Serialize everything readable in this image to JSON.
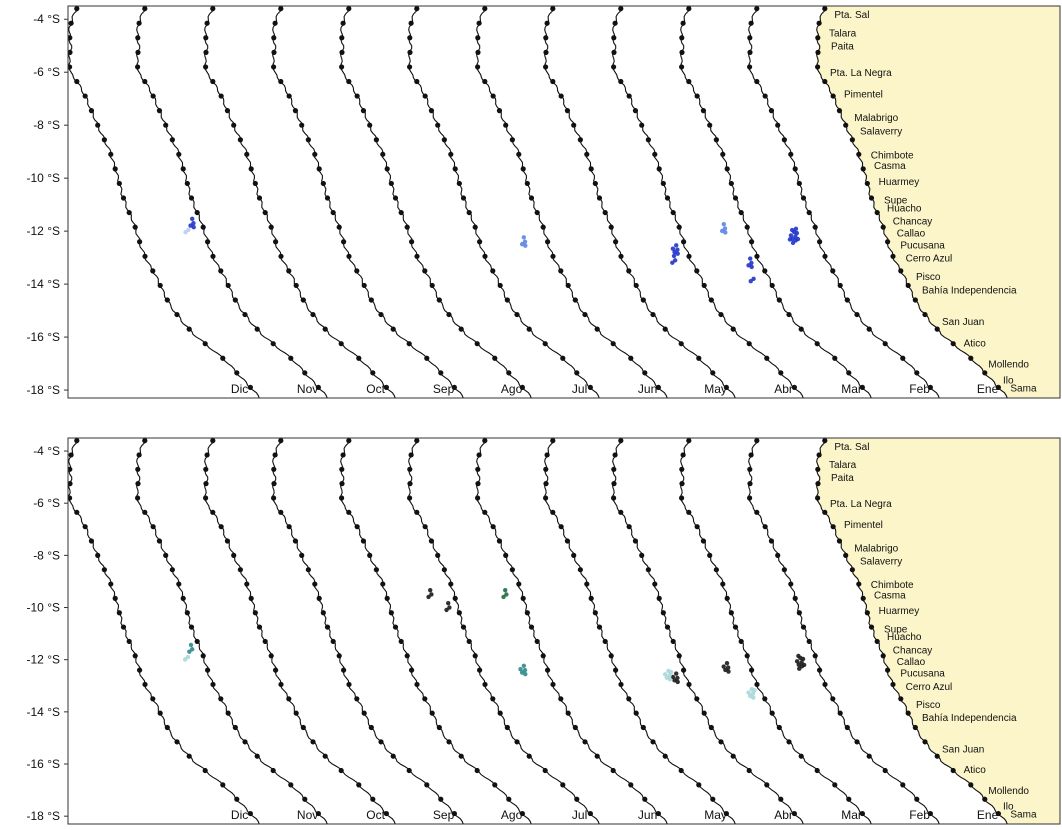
{
  "colors": {
    "land": "#fbf5c9",
    "coast": "#111111",
    "frame": "#333333",
    "top_catch": [
      "#1f34c9",
      "#5d84e6",
      "#b9ccf3"
    ],
    "bottom_catch": [
      "#1a1a1a",
      "#2f8a8a",
      "#a9d7d9",
      "#1f6b44"
    ]
  },
  "chart_data": {
    "type": "map",
    "lat_ticks": [
      "-4 °S",
      "-6 °S",
      "-8 °S",
      "-10 °S",
      "-12 °S",
      "-14 °S",
      "-16 °S",
      "-18 °S"
    ],
    "lat_values": [
      -4,
      -6,
      -8,
      -10,
      -12,
      -14,
      -16,
      -18
    ],
    "ylim": [
      -18.3,
      -3.5
    ],
    "months": [
      "Dic",
      "Nov",
      "Oct",
      "Sep",
      "Ago",
      "Jul",
      "Jun",
      "May",
      "Abr",
      "Mar",
      "Feb",
      "Ene"
    ],
    "towns": [
      {
        "name": "Pta. Sal",
        "lat": -3.8
      },
      {
        "name": "Talara",
        "lat": -4.5
      },
      {
        "name": "Paita",
        "lat": -5.0
      },
      {
        "name": "Pta. La Negra",
        "lat": -6.0
      },
      {
        "name": "Pimentel",
        "lat": -6.8
      },
      {
        "name": "Malabrigo",
        "lat": -7.7
      },
      {
        "name": "Salaverry",
        "lat": -8.2
      },
      {
        "name": "Chimbote",
        "lat": -9.1
      },
      {
        "name": "Casma",
        "lat": -9.5
      },
      {
        "name": "Huarmey",
        "lat": -10.1
      },
      {
        "name": "Supe",
        "lat": -10.8
      },
      {
        "name": "Huacho",
        "lat": -11.1
      },
      {
        "name": "Chancay",
        "lat": -11.6
      },
      {
        "name": "Callao",
        "lat": -12.05
      },
      {
        "name": "Pucusana",
        "lat": -12.5
      },
      {
        "name": "Cerro Azul",
        "lat": -13.0
      },
      {
        "name": "Pisco",
        "lat": -13.7
      },
      {
        "name": "Bahía Independencia",
        "lat": -14.2
      },
      {
        "name": "San Juan",
        "lat": -15.4
      },
      {
        "name": "Atico",
        "lat": -16.2
      },
      {
        "name": "Mollendo",
        "lat": -17.0
      },
      {
        "name": "Ilo",
        "lat": -17.6
      },
      {
        "name": "Sama",
        "lat": -17.9
      }
    ],
    "panels": [
      {
        "catch_clusters": [
          {
            "month": "Nov",
            "lat": -11.7,
            "size": 4,
            "color": 0
          },
          {
            "month": "Nov",
            "lat": -11.95,
            "size": 2,
            "color": 2
          },
          {
            "month": "Jun",
            "lat": -12.4,
            "size": 4,
            "color": 1
          },
          {
            "month": "Abr",
            "lat": -12.7,
            "size": 5,
            "color": 0
          },
          {
            "month": "Abr",
            "lat": -13.1,
            "size": 3,
            "color": 0
          },
          {
            "month": "Mar",
            "lat": -11.9,
            "size": 4,
            "color": 1
          },
          {
            "month": "Mar",
            "lat": -13.2,
            "size": 4,
            "color": 0
          },
          {
            "month": "Mar",
            "lat": -13.8,
            "size": 2,
            "color": 0
          },
          {
            "month": "Feb",
            "lat": -12.2,
            "size": 11,
            "color": 0
          }
        ]
      },
      {
        "catch_clusters": [
          {
            "month": "Nov",
            "lat": -11.6,
            "size": 3,
            "color": 1
          },
          {
            "month": "Nov",
            "lat": -11.9,
            "size": 2,
            "color": 2
          },
          {
            "month": "Jul",
            "lat": -9.5,
            "size": 3,
            "color": 0
          },
          {
            "month": "Jul",
            "lat": -10.0,
            "size": 3,
            "color": 0
          },
          {
            "month": "Jun",
            "lat": -9.5,
            "size": 3,
            "color": 3
          },
          {
            "month": "Jun",
            "lat": -12.4,
            "size": 5,
            "color": 1
          },
          {
            "month": "Abr",
            "lat": -12.7,
            "size": 5,
            "color": 0
          },
          {
            "month": "Abr",
            "lat": -12.6,
            "size": 6,
            "color": 2
          },
          {
            "month": "Mar",
            "lat": -12.3,
            "size": 5,
            "color": 0
          },
          {
            "month": "Mar",
            "lat": -13.3,
            "size": 6,
            "color": 2
          },
          {
            "month": "Feb",
            "lat": -12.1,
            "size": 9,
            "color": 0
          }
        ]
      }
    ]
  }
}
